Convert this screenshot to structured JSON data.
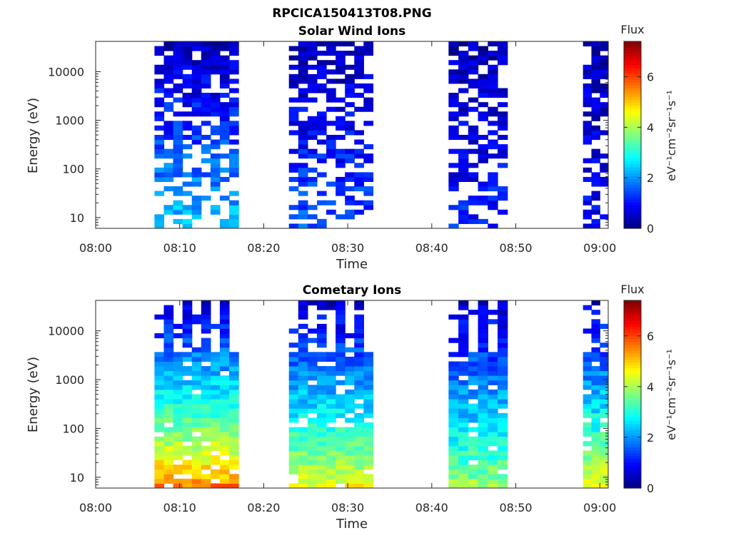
{
  "figure": {
    "title": "RPCICA150413T08.PNG"
  },
  "colorbar": {
    "label": "Flux",
    "unit_label": "eV⁻¹cm⁻²sr⁻¹s⁻¹",
    "ticks": [
      "0",
      "2",
      "4",
      "6"
    ],
    "range": [
      0,
      7.4
    ],
    "colormap": "jet"
  },
  "chart_data": [
    {
      "type": "heatmap",
      "title": "Solar Wind Ions",
      "xlabel": "Time",
      "ylabel": "Energy (eV)",
      "yscale": "log",
      "ylim": [
        6,
        42000
      ],
      "xlim": [
        "08:00",
        "09:01"
      ],
      "xticks": [
        "08:00",
        "08:10",
        "08:20",
        "08:30",
        "08:40",
        "08:50",
        "09:00"
      ],
      "yticks": [
        "10",
        "100",
        "1000",
        "10000"
      ],
      "data_intervals": [
        {
          "start": "08:07",
          "end": "08:16",
          "flux_low_energy": 2.5,
          "flux_high_energy": 0.4
        },
        {
          "start": "08:23",
          "end": "08:32",
          "flux_low_energy": 1.6,
          "flux_high_energy": 0.4
        },
        {
          "start": "08:42",
          "end": "08:48",
          "flux_low_energy": 1.2,
          "flux_high_energy": 0.4
        },
        {
          "start": "08:58",
          "end": "09:00",
          "flux_low_energy": 1.0,
          "flux_high_energy": 0.4
        }
      ]
    },
    {
      "type": "heatmap",
      "title": "Cometary Ions",
      "xlabel": "Time",
      "ylabel": "Energy (eV)",
      "yscale": "log",
      "ylim": [
        6,
        42000
      ],
      "xlim": [
        "08:00",
        "09:01"
      ],
      "xticks": [
        "08:00",
        "08:10",
        "08:20",
        "08:30",
        "08:40",
        "08:50",
        "09:00"
      ],
      "yticks": [
        "10",
        "100",
        "1000",
        "10000"
      ],
      "data_intervals": [
        {
          "start": "08:07",
          "end": "08:16",
          "flux_low_energy": 5.6,
          "flux_high_energy": 0.5
        },
        {
          "start": "08:23",
          "end": "08:32",
          "flux_low_energy": 4.6,
          "flux_high_energy": 0.5
        },
        {
          "start": "08:42",
          "end": "08:48",
          "flux_low_energy": 4.0,
          "flux_high_energy": 0.5
        },
        {
          "start": "08:58",
          "end": "09:00",
          "flux_low_energy": 4.6,
          "flux_high_energy": 0.5
        }
      ]
    }
  ]
}
